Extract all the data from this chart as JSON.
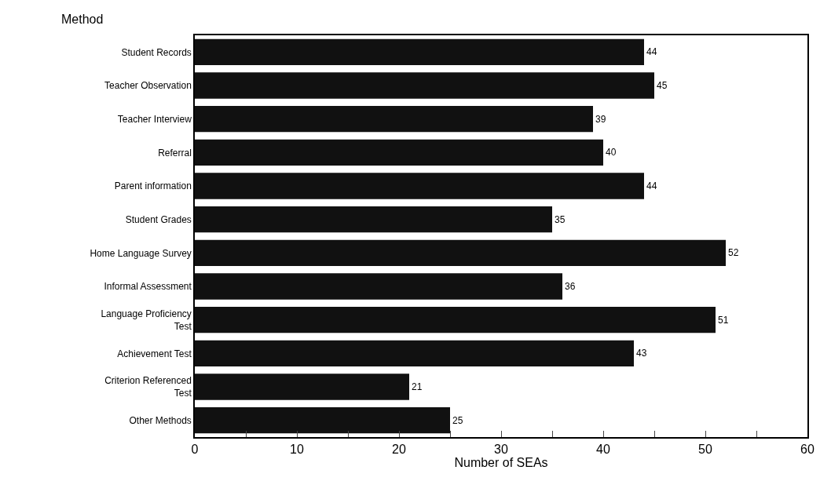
{
  "chart_data": {
    "type": "bar",
    "orientation": "horizontal",
    "ylabel": "Method",
    "xlabel": "Number of SEAs",
    "categories": [
      "Student Records",
      "Teacher Observation",
      "Teacher Interview",
      "Referral",
      "Parent information",
      "Student Grades",
      "Home Language Survey",
      "Informal Assessment",
      "Language Proficiency Test",
      "Achievement Test",
      "Criterion Referenced Test",
      "Other Methods"
    ],
    "values": [
      44,
      45,
      39,
      40,
      44,
      35,
      52,
      36,
      51,
      43,
      21,
      25
    ],
    "color": "#111111",
    "data_labels": true,
    "legend": false,
    "xlim": [
      0,
      60
    ],
    "xticks": [
      0,
      {
        "value": 5,
        "label": null
      },
      10,
      {
        "value": 15,
        "label": null
      },
      20,
      {
        "value": 25,
        "label": null
      },
      30,
      {
        "value": 35,
        "label": null
      },
      40,
      {
        "value": 45,
        "label": null
      },
      50,
      {
        "value": 55,
        "label": null
      },
      60
    ]
  }
}
